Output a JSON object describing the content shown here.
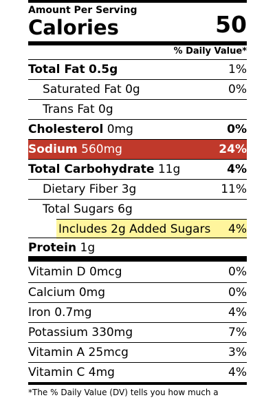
{
  "header": {
    "amount_per_serving": "Amount Per Serving",
    "calories_label": "Calories",
    "calories_value": "50",
    "daily_value_header": "% Daily Value*"
  },
  "nutrients": {
    "total_fat": {
      "label": "Total Fat",
      "amount": "0.5g",
      "dv": "1%"
    },
    "saturated_fat": {
      "label": "Saturated Fat 0g",
      "dv": "0%"
    },
    "trans_fat": {
      "label": "Trans Fat 0g"
    },
    "cholesterol": {
      "label": "Cholesterol",
      "amount": "0mg",
      "dv": "0%"
    },
    "sodium": {
      "label": "Sodium",
      "amount": "560mg",
      "dv": "24%"
    },
    "total_carbohydrate": {
      "label": "Total Carbohydrate",
      "amount": "11g",
      "dv": "4%"
    },
    "dietary_fiber": {
      "label": "Dietary Fiber 3g",
      "dv": "11%"
    },
    "total_sugars": {
      "label": "Total Sugars 6g"
    },
    "added_sugars": {
      "label": "Includes 2g Added Sugars",
      "dv": "4%"
    },
    "protein": {
      "label": "Protein",
      "amount": "1g"
    }
  },
  "vitamins": {
    "vitamin_d": {
      "label": "Vitamin D 0mcg",
      "dv": "0%"
    },
    "calcium": {
      "label": "Calcium 0mg",
      "dv": "0%"
    },
    "iron": {
      "label": "Iron 0.7mg",
      "dv": "4%"
    },
    "potassium": {
      "label": "Potassium 330mg",
      "dv": "7%"
    },
    "vitamin_a": {
      "label": "Vitamin A 25mcg",
      "dv": "3%"
    },
    "vitamin_c": {
      "label": "Vitamin C 4mg",
      "dv": "4%"
    }
  },
  "footnote": "*The % Daily Value (DV) tells you how much a",
  "colors": {
    "sodium_highlight": "#c0392b",
    "added_sugars_highlight": "#fff59d"
  }
}
